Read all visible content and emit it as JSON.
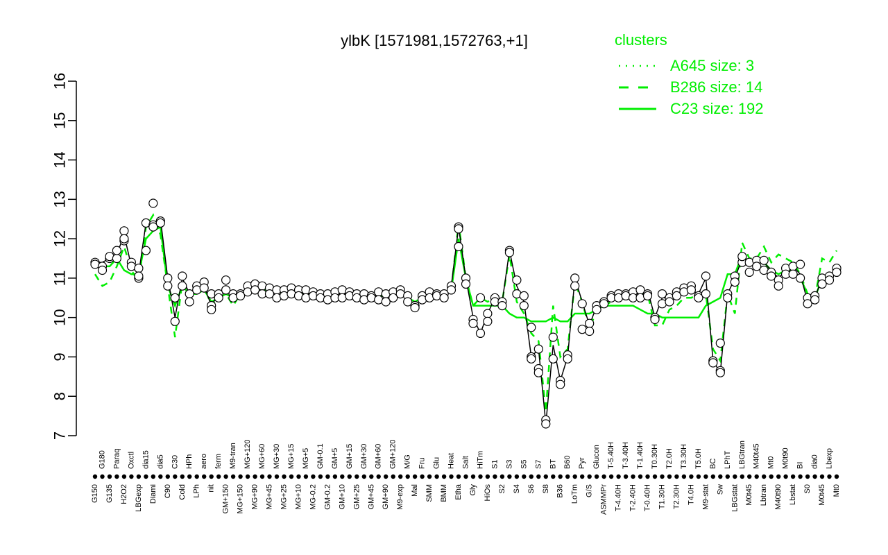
{
  "chart_data": {
    "type": "line",
    "title": "ylbK [1571981,1572763,+1]",
    "xlabel": "",
    "ylabel": "",
    "ylim": [
      7,
      16
    ],
    "yticks": [
      7,
      8,
      9,
      10,
      11,
      12,
      13,
      14,
      15,
      16
    ],
    "grid": false,
    "legend": {
      "title": "clusters",
      "placement": "top-right",
      "color": "#00ee00",
      "entries": [
        {
          "label": "A645 size: 3",
          "style": "dotted"
        },
        {
          "label": "B286 size: 14",
          "style": "dashed"
        },
        {
          "label": "C23 size: 192",
          "style": "solid"
        }
      ]
    },
    "x_tick_labels": [
      "G150",
      "G180",
      "G135",
      "Paraq",
      "H2O2",
      "Oxctl",
      "LBGexp",
      "dia15",
      "Diami",
      "dia5",
      "C90",
      "C30",
      "Cold",
      "HPh",
      "LPh",
      "aero",
      "nit",
      "ferm",
      "GM+150",
      "M9-tran",
      "MG+150",
      "MG+120",
      "MG+90",
      "MG+60",
      "MG+45",
      "MG+30",
      "MG+25",
      "MG+15",
      "MG+10",
      "MG+5",
      "MG-0.2",
      "GM-0.1",
      "GM-0.2",
      "GM+5",
      "GM+10",
      "GM+15",
      "GM+25",
      "GM+30",
      "GM+45",
      "GM+60",
      "GM+90",
      "GM+120",
      "M9-exp",
      "M/G",
      "Mal",
      "Fru",
      "SMM",
      "Glu",
      "BMM",
      "Heat",
      "Etha",
      "Salt",
      "Gly",
      "HiTm",
      "HiOs",
      "S1",
      "S2",
      "S3",
      "S4",
      "S5",
      "S6",
      "S7",
      "S8",
      "BT",
      "B36",
      "B60",
      "LoTm",
      "Pyr",
      "G/S",
      "Glucon",
      "ASMMPr",
      "T-5.40H",
      "T-4.40H",
      "T-3.40H",
      "T-2.40H",
      "T-1.40H",
      "T-0.40H",
      "T0.30H",
      "T1.30H",
      "T2.0H",
      "T2.30H",
      "T3.30H",
      "T4.0H",
      "T5.0H",
      "M9-stat",
      "BC",
      "Sw",
      "LPhT",
      "LBGstat",
      "LBGtran",
      "M0t45",
      "M40t45",
      "Lbtran",
      "Mt0",
      "M40t90",
      "M0t90",
      "Lbstat",
      "BI",
      "S0",
      "dia0",
      "M0t45",
      "Lbexp",
      "Mt0"
    ],
    "x_label_colors": [
      "#000000"
    ],
    "series": [
      {
        "name": "C23 size: 192",
        "color": "#00ee00",
        "style": "solid",
        "values": [
          11.3,
          11.3,
          11.3,
          11.5,
          11.2,
          11.1,
          11.1,
          12.0,
          12.2,
          12.3,
          10.8,
          10.3,
          10.8,
          10.6,
          10.6,
          10.7,
          10.4,
          10.5,
          10.6,
          10.5,
          10.6,
          10.7,
          10.7,
          10.7,
          10.7,
          10.7,
          10.6,
          10.6,
          10.6,
          10.6,
          10.6,
          10.5,
          10.5,
          10.5,
          10.5,
          10.5,
          10.5,
          10.5,
          10.5,
          10.5,
          10.6,
          10.6,
          10.6,
          10.5,
          10.4,
          10.5,
          10.5,
          10.5,
          10.6,
          10.7,
          12.0,
          11.0,
          10.3,
          10.3,
          10.3,
          10.3,
          10.3,
          10.1,
          10.0,
          10.0,
          9.9,
          9.9,
          9.9,
          10.0,
          9.9,
          9.9,
          10.1,
          10.1,
          10.1,
          10.2,
          10.3,
          10.3,
          10.3,
          10.3,
          10.3,
          10.2,
          10.1,
          10.1,
          10.0,
          10.0,
          10.0,
          10.0,
          10.0,
          10.0,
          10.3,
          10.4,
          10.5,
          11.1,
          11.1,
          11.6,
          11.4,
          11.4,
          11.4,
          11.2,
          11.1,
          11.2,
          11.2,
          11.0,
          10.6,
          10.5,
          11.0,
          11.0,
          11.2
        ]
      },
      {
        "name": "B286 size: 14",
        "color": "#00ee00",
        "style": "dashed",
        "values": [
          11.1,
          10.8,
          10.9,
          11.3,
          11.8,
          11.2,
          10.9,
          12.3,
          12.6,
          12.1,
          10.8,
          9.5,
          10.9,
          10.6,
          10.6,
          10.8,
          10.3,
          10.5,
          10.6,
          10.3,
          10.6,
          10.7,
          10.7,
          10.7,
          10.7,
          10.7,
          10.7,
          10.7,
          10.6,
          10.6,
          10.6,
          10.5,
          10.5,
          10.5,
          10.5,
          10.5,
          10.6,
          10.6,
          10.6,
          10.6,
          10.6,
          10.6,
          10.7,
          10.5,
          10.4,
          10.5,
          10.5,
          10.5,
          10.6,
          10.7,
          12.4,
          11.0,
          10.3,
          10.5,
          10.4,
          10.5,
          10.4,
          11.6,
          10.4,
          10.1,
          9.6,
          9.4,
          7.6,
          10.3,
          9.0,
          9.2,
          10.9,
          10.4,
          9.7,
          10.2,
          10.3,
          10.4,
          10.5,
          10.5,
          10.5,
          10.6,
          10.6,
          9.8,
          9.8,
          10.2,
          10.3,
          10.5,
          10.5,
          10.6,
          10.6,
          9.2,
          8.9,
          10.6,
          10.1,
          11.9,
          11.5,
          11.5,
          11.8,
          11.4,
          11.6,
          11.5,
          11.4,
          11.1,
          10.6,
          10.5,
          11.5,
          11.4,
          11.7
        ]
      },
      {
        "name": "ylbK",
        "color": "#000000",
        "style": "solid",
        "values": [
          11.4,
          11.4,
          11.5,
          11.6,
          12.1,
          11.3,
          11.1,
          12.4,
          12.3,
          12.5,
          11.0,
          10.0,
          11.0,
          10.6,
          10.7,
          10.8,
          10.3,
          10.6,
          10.8,
          10.5,
          10.6,
          10.7,
          10.8,
          10.8,
          10.7,
          10.7,
          10.6,
          10.7,
          10.6,
          10.6,
          10.6,
          10.5,
          10.6,
          10.6,
          10.6,
          10.6,
          10.6,
          10.5,
          10.6,
          10.6,
          10.6,
          10.6,
          10.7,
          10.5,
          10.3,
          10.5,
          10.6,
          10.6,
          10.6,
          10.8,
          12.3,
          11.0,
          10.0,
          9.6,
          10.1,
          10.5,
          10.4,
          11.7,
          10.8,
          10.4,
          9.0,
          9.2,
          7.3,
          9.3,
          8.4,
          9.0,
          11.0,
          10.4,
          9.8,
          10.3,
          10.4,
          10.5,
          10.6,
          10.6,
          10.6,
          10.6,
          10.7,
          10.0,
          10.5,
          10.5,
          10.6,
          10.7,
          10.7,
          10.6,
          11.0,
          8.9,
          8.6,
          10.6,
          11.0,
          11.5,
          11.4,
          11.4,
          11.4,
          11.2,
          11.0,
          11.2,
          11.3,
          11.1,
          10.4,
          10.5,
          11.0,
          11.0,
          11.2
        ]
      }
    ],
    "points": [
      [
        0,
        11.4
      ],
      [
        0,
        11.35
      ],
      [
        1,
        11.3
      ],
      [
        1,
        11.2
      ],
      [
        2,
        11.5
      ],
      [
        2,
        11.55
      ],
      [
        3,
        11.5
      ],
      [
        3,
        11.7
      ],
      [
        4,
        11.95
      ],
      [
        4,
        12.2
      ],
      [
        4,
        12.0
      ],
      [
        5,
        11.4
      ],
      [
        5,
        11.3
      ],
      [
        6,
        11.25
      ],
      [
        6,
        11.0
      ],
      [
        6,
        11.05
      ],
      [
        7,
        11.7
      ],
      [
        7,
        12.4
      ],
      [
        8,
        12.35
      ],
      [
        8,
        12.3
      ],
      [
        8,
        12.9
      ],
      [
        9,
        12.45
      ],
      [
        9,
        12.4
      ],
      [
        10,
        11.0
      ],
      [
        10,
        10.8
      ],
      [
        11,
        10.5
      ],
      [
        11,
        9.9
      ],
      [
        12,
        10.8
      ],
      [
        12,
        11.05
      ],
      [
        13,
        10.6
      ],
      [
        13,
        10.4
      ],
      [
        14,
        10.8
      ],
      [
        14,
        10.7
      ],
      [
        15,
        10.9
      ],
      [
        15,
        10.75
      ],
      [
        16,
        10.6
      ],
      [
        16,
        10.3
      ],
      [
        16,
        10.2
      ],
      [
        17,
        10.6
      ],
      [
        17,
        10.5
      ],
      [
        18,
        10.7
      ],
      [
        18,
        10.95
      ],
      [
        19,
        10.6
      ],
      [
        19,
        10.5
      ],
      [
        20,
        10.6
      ],
      [
        20,
        10.55
      ],
      [
        21,
        10.8
      ],
      [
        21,
        10.65
      ],
      [
        22,
        10.85
      ],
      [
        22,
        10.7
      ],
      [
        23,
        10.8
      ],
      [
        23,
        10.6
      ],
      [
        24,
        10.75
      ],
      [
        24,
        10.6
      ],
      [
        25,
        10.7
      ],
      [
        25,
        10.5
      ],
      [
        26,
        10.7
      ],
      [
        26,
        10.55
      ],
      [
        27,
        10.75
      ],
      [
        27,
        10.6
      ],
      [
        28,
        10.7
      ],
      [
        28,
        10.55
      ],
      [
        29,
        10.7
      ],
      [
        29,
        10.5
      ],
      [
        30,
        10.65
      ],
      [
        30,
        10.55
      ],
      [
        31,
        10.6
      ],
      [
        31,
        10.5
      ],
      [
        32,
        10.6
      ],
      [
        32,
        10.45
      ],
      [
        33,
        10.65
      ],
      [
        33,
        10.5
      ],
      [
        34,
        10.7
      ],
      [
        34,
        10.5
      ],
      [
        35,
        10.65
      ],
      [
        35,
        10.55
      ],
      [
        36,
        10.6
      ],
      [
        36,
        10.5
      ],
      [
        37,
        10.6
      ],
      [
        37,
        10.45
      ],
      [
        38,
        10.55
      ],
      [
        38,
        10.5
      ],
      [
        39,
        10.65
      ],
      [
        39,
        10.45
      ],
      [
        40,
        10.6
      ],
      [
        40,
        10.4
      ],
      [
        41,
        10.65
      ],
      [
        41,
        10.5
      ],
      [
        42,
        10.7
      ],
      [
        42,
        10.6
      ],
      [
        43,
        10.55
      ],
      [
        43,
        10.4
      ],
      [
        44,
        10.3
      ],
      [
        44,
        10.25
      ],
      [
        45,
        10.55
      ],
      [
        45,
        10.45
      ],
      [
        46,
        10.65
      ],
      [
        46,
        10.5
      ],
      [
        47,
        10.6
      ],
      [
        47,
        10.55
      ],
      [
        48,
        10.6
      ],
      [
        48,
        10.5
      ],
      [
        49,
        10.8
      ],
      [
        49,
        10.7
      ],
      [
        50,
        11.8
      ],
      [
        50,
        12.3
      ],
      [
        50,
        12.25
      ],
      [
        51,
        11.0
      ],
      [
        51,
        10.85
      ],
      [
        52,
        9.95
      ],
      [
        52,
        9.85
      ],
      [
        53,
        10.5
      ],
      [
        53,
        9.6
      ],
      [
        54,
        10.1
      ],
      [
        54,
        9.9
      ],
      [
        55,
        10.5
      ],
      [
        55,
        10.4
      ],
      [
        56,
        10.4
      ],
      [
        56,
        10.3
      ],
      [
        57,
        11.7
      ],
      [
        57,
        11.65
      ],
      [
        58,
        10.95
      ],
      [
        58,
        10.6
      ],
      [
        59,
        10.55
      ],
      [
        59,
        10.3
      ],
      [
        60,
        9.75
      ],
      [
        60,
        9.0
      ],
      [
        60,
        8.95
      ],
      [
        61,
        9.2
      ],
      [
        61,
        8.7
      ],
      [
        61,
        8.6
      ],
      [
        62,
        7.4
      ],
      [
        62,
        7.3
      ],
      [
        63,
        9.5
      ],
      [
        63,
        8.95
      ],
      [
        64,
        8.4
      ],
      [
        64,
        8.3
      ],
      [
        65,
        9.05
      ],
      [
        65,
        8.95
      ],
      [
        66,
        11.0
      ],
      [
        66,
        10.8
      ],
      [
        67,
        10.35
      ],
      [
        67,
        9.7
      ],
      [
        68,
        9.85
      ],
      [
        68,
        9.65
      ],
      [
        69,
        10.3
      ],
      [
        69,
        10.2
      ],
      [
        70,
        10.4
      ],
      [
        70,
        10.35
      ],
      [
        71,
        10.55
      ],
      [
        71,
        10.5
      ],
      [
        72,
        10.6
      ],
      [
        72,
        10.5
      ],
      [
        73,
        10.6
      ],
      [
        73,
        10.55
      ],
      [
        74,
        10.65
      ],
      [
        74,
        10.5
      ],
      [
        75,
        10.7
      ],
      [
        75,
        10.5
      ],
      [
        76,
        10.6
      ],
      [
        76,
        10.55
      ],
      [
        77,
        10.0
      ],
      [
        77,
        9.95
      ],
      [
        78,
        10.6
      ],
      [
        78,
        10.35
      ],
      [
        79,
        10.5
      ],
      [
        79,
        10.4
      ],
      [
        80,
        10.65
      ],
      [
        80,
        10.55
      ],
      [
        81,
        10.75
      ],
      [
        81,
        10.65
      ],
      [
        82,
        10.8
      ],
      [
        82,
        10.7
      ],
      [
        83,
        10.55
      ],
      [
        83,
        10.5
      ],
      [
        84,
        11.05
      ],
      [
        84,
        10.6
      ],
      [
        85,
        8.9
      ],
      [
        85,
        8.85
      ],
      [
        86,
        9.35
      ],
      [
        86,
        8.65
      ],
      [
        86,
        8.6
      ],
      [
        87,
        10.6
      ],
      [
        87,
        10.5
      ],
      [
        88,
        11.05
      ],
      [
        88,
        10.9
      ],
      [
        89,
        11.4
      ],
      [
        89,
        11.55
      ],
      [
        90,
        11.4
      ],
      [
        90,
        11.15
      ],
      [
        91,
        11.45
      ],
      [
        91,
        11.3
      ],
      [
        92,
        11.45
      ],
      [
        92,
        11.2
      ],
      [
        93,
        11.15
      ],
      [
        93,
        11.05
      ],
      [
        94,
        10.95
      ],
      [
        94,
        10.8
      ],
      [
        95,
        11.25
      ],
      [
        95,
        11.1
      ],
      [
        96,
        11.3
      ],
      [
        96,
        11.1
      ],
      [
        97,
        11.35
      ],
      [
        97,
        11.0
      ],
      [
        98,
        10.5
      ],
      [
        98,
        10.35
      ],
      [
        99,
        10.55
      ],
      [
        99,
        10.45
      ],
      [
        100,
        11.0
      ],
      [
        100,
        10.85
      ],
      [
        101,
        11.05
      ],
      [
        101,
        10.95
      ],
      [
        102,
        11.25
      ],
      [
        102,
        11.15
      ]
    ]
  }
}
